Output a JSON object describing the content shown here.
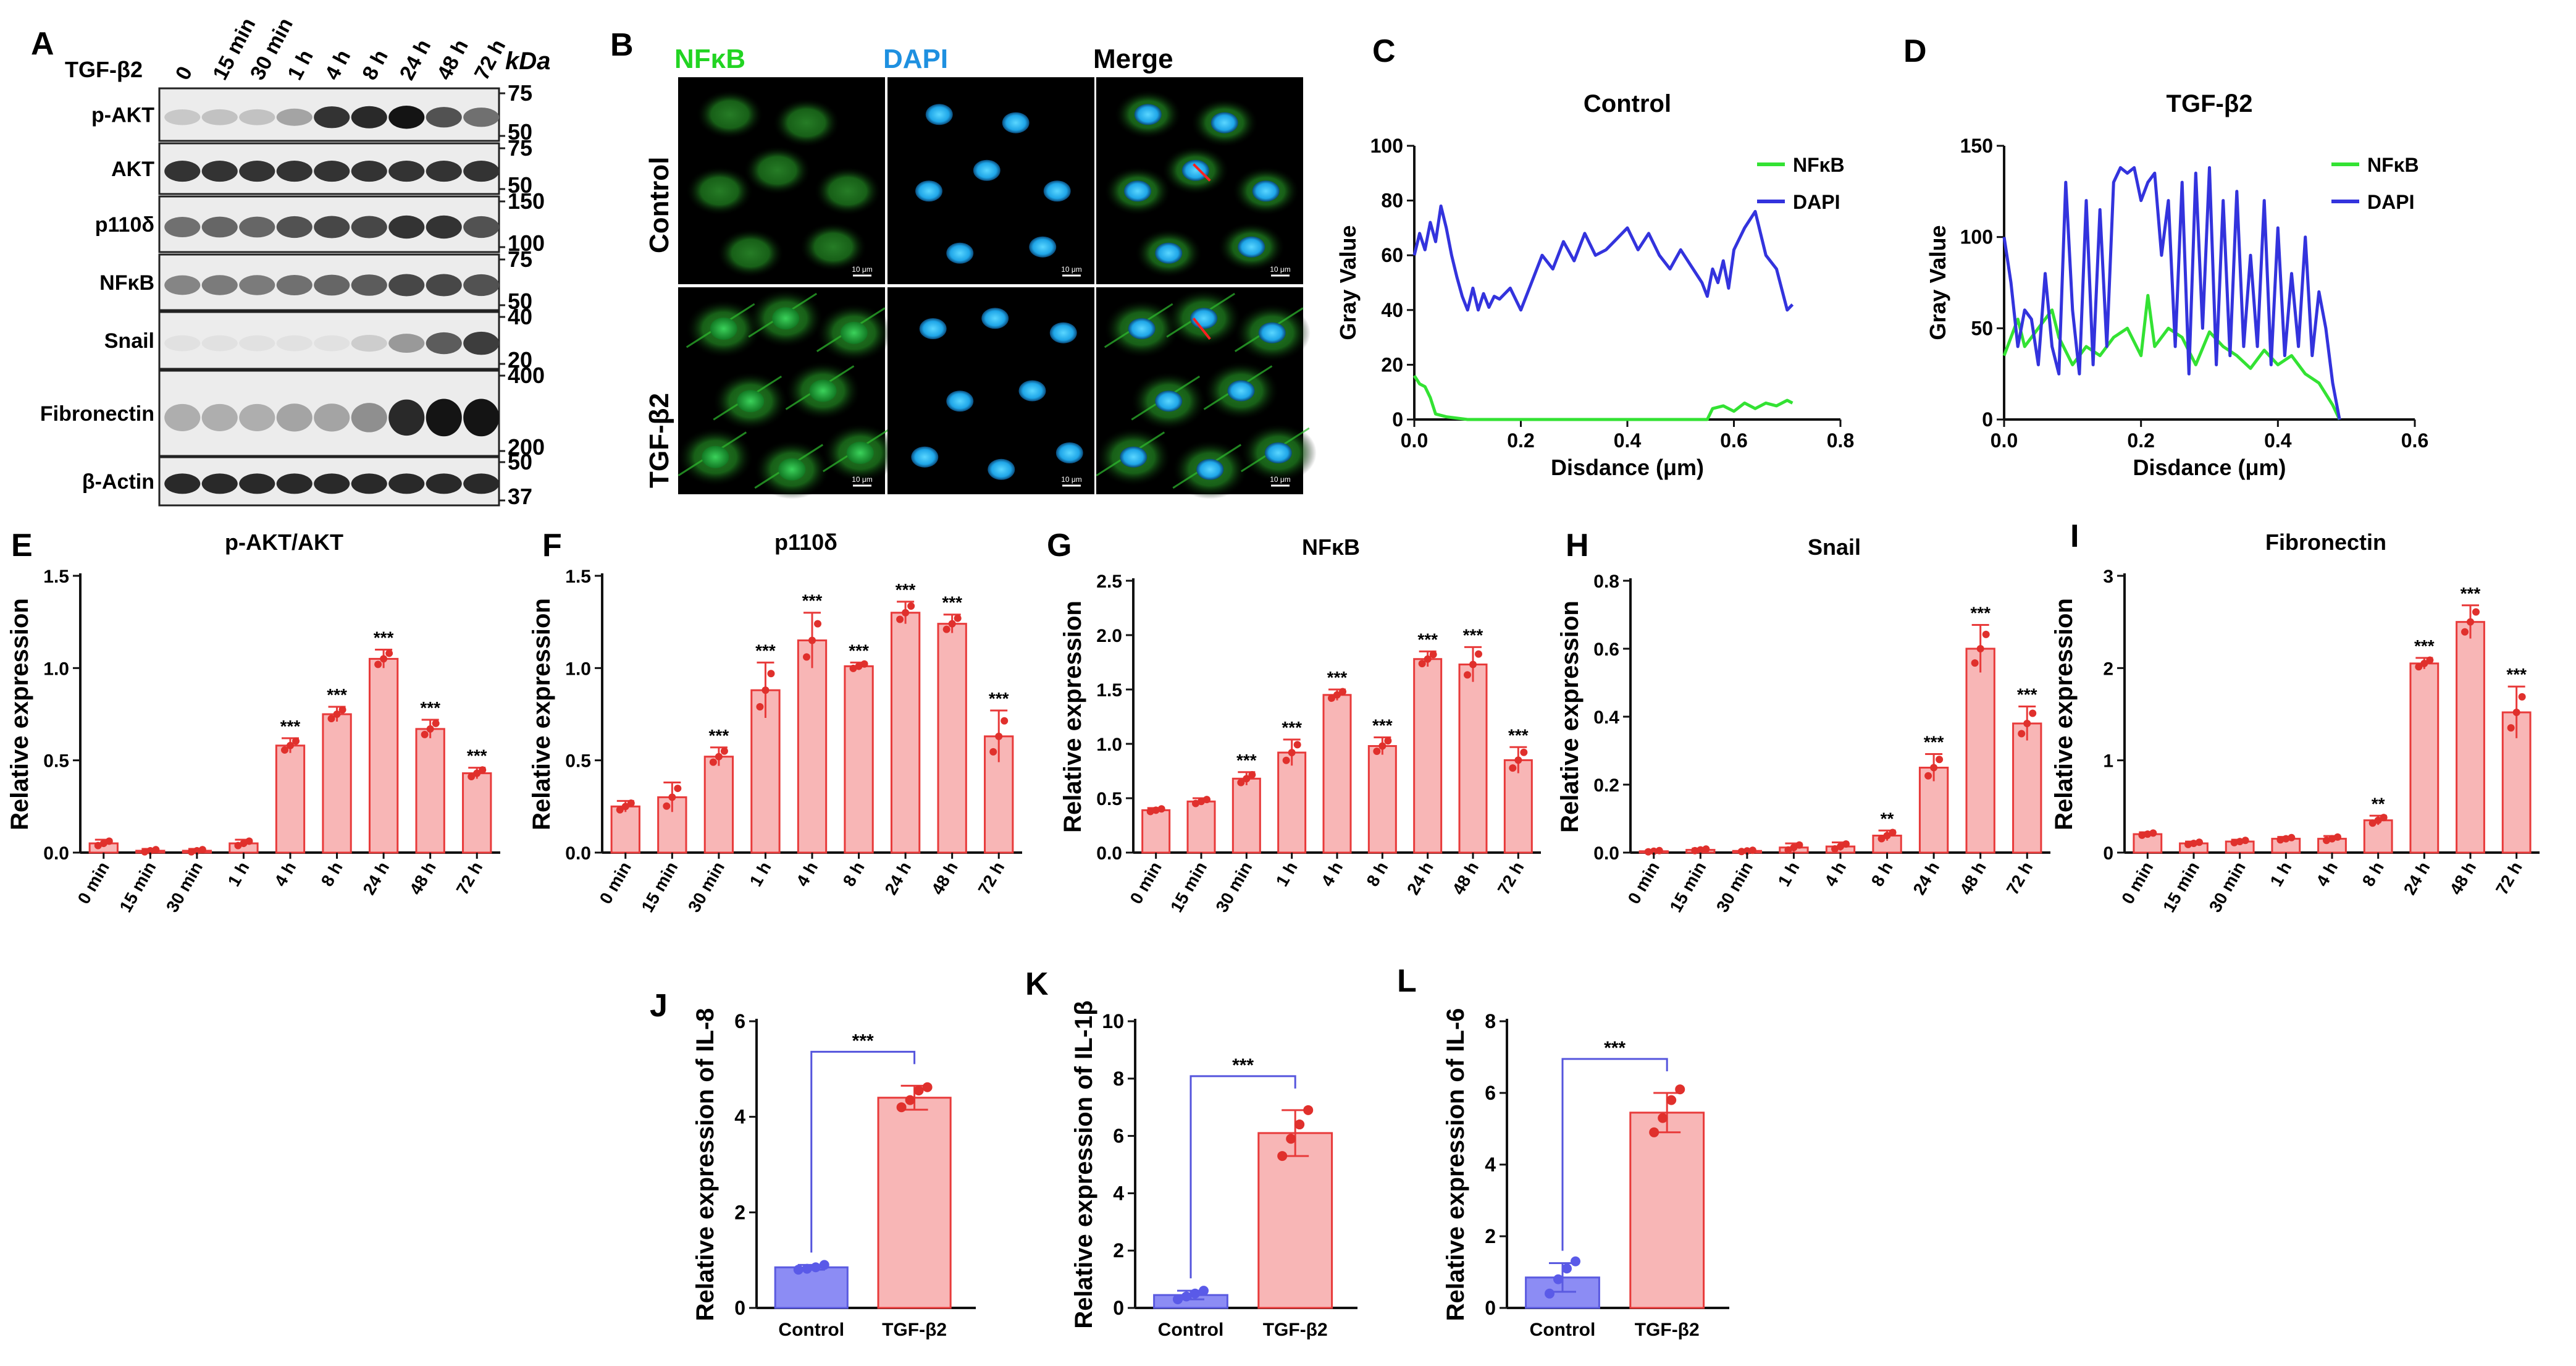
{
  "figure": {
    "panel_letters": [
      "A",
      "B",
      "C",
      "D",
      "E",
      "F",
      "G",
      "H",
      "I",
      "J",
      "K",
      "L"
    ]
  },
  "colors": {
    "bar_red_fill": "#f8b6b6",
    "bar_red_stroke": "#e83a3a",
    "bar_blue_fill": "#8c8cf4",
    "bar_blue_stroke": "#5a5ae0",
    "dot_red": "#e0302c",
    "dot_blue": "#5a5ae8",
    "line_green": "#33e233",
    "line_blue": "#3333dd",
    "nfkb_label": "#22d422",
    "dapi_label": "#1e90e0"
  },
  "western_blot": {
    "treatment_label": "TGF-β2",
    "lanes": [
      "0",
      "15 min",
      "30 min",
      "1 h",
      "4 h",
      "8 h",
      "24 h",
      "48 h",
      "72 h"
    ],
    "kda_header": "kDa",
    "rows": [
      {
        "name": "p-AKT",
        "markers": [
          "75",
          "50"
        ],
        "intensity": [
          0.12,
          0.15,
          0.15,
          0.3,
          0.85,
          0.9,
          1.0,
          0.7,
          0.55
        ]
      },
      {
        "name": "AKT",
        "markers": [
          "75",
          "50"
        ],
        "intensity": [
          0.85,
          0.85,
          0.85,
          0.85,
          0.85,
          0.85,
          0.85,
          0.85,
          0.85
        ]
      },
      {
        "name": "p110δ",
        "markers": [
          "150",
          "100"
        ],
        "intensity": [
          0.55,
          0.6,
          0.6,
          0.7,
          0.75,
          0.75,
          0.85,
          0.85,
          0.7
        ]
      },
      {
        "name": "NFκB",
        "markers": [
          "75",
          "50"
        ],
        "intensity": [
          0.45,
          0.5,
          0.5,
          0.55,
          0.6,
          0.65,
          0.75,
          0.75,
          0.7
        ]
      },
      {
        "name": "Snail",
        "markers": [
          "40",
          "20"
        ],
        "intensity": [
          0.0,
          0.0,
          0.0,
          0.0,
          0.0,
          0.1,
          0.35,
          0.65,
          0.8
        ]
      },
      {
        "name": "Fibronectin",
        "markers": [
          "400",
          "200"
        ],
        "intensity": [
          0.25,
          0.25,
          0.25,
          0.3,
          0.3,
          0.4,
          0.9,
          1.0,
          1.0
        ]
      },
      {
        "name": "β-Actin",
        "markers": [
          "50",
          "37"
        ],
        "intensity": [
          0.9,
          0.9,
          0.9,
          0.9,
          0.9,
          0.9,
          0.9,
          0.9,
          0.9
        ]
      }
    ]
  },
  "microscopy": {
    "columns": [
      "NFκB",
      "DAPI",
      "Merge"
    ],
    "rows": [
      "Control",
      "TGF-β2"
    ],
    "scale_bar": "10 μm"
  },
  "chart_data": [
    {
      "panel": "C",
      "type": "line",
      "title": "Control",
      "xlabel": "Disdance (μm)",
      "ylabel": "Gray Value",
      "xlim": [
        0,
        0.8
      ],
      "ylim": [
        0,
        100
      ],
      "xticks": [
        "0.0",
        "0.2",
        "0.4",
        "0.6",
        "0.8"
      ],
      "yticks": [
        "0",
        "20",
        "40",
        "60",
        "80",
        "100"
      ],
      "series": [
        {
          "name": "NFκB",
          "color": "#33e233",
          "x": [
            0,
            0.01,
            0.02,
            0.03,
            0.04,
            0.06,
            0.1,
            0.2,
            0.3,
            0.4,
            0.5,
            0.55,
            0.56,
            0.58,
            0.6,
            0.62,
            0.64,
            0.66,
            0.68,
            0.7,
            0.71
          ],
          "y": [
            16,
            13,
            12,
            8,
            2,
            1,
            0,
            0,
            0,
            0,
            0,
            0,
            4,
            5,
            3,
            6,
            4,
            6,
            5,
            7,
            6
          ]
        },
        {
          "name": "DAPI",
          "color": "#3333dd",
          "x": [
            0,
            0.01,
            0.02,
            0.03,
            0.04,
            0.05,
            0.06,
            0.07,
            0.08,
            0.09,
            0.1,
            0.11,
            0.12,
            0.13,
            0.14,
            0.15,
            0.16,
            0.18,
            0.2,
            0.22,
            0.24,
            0.26,
            0.28,
            0.3,
            0.32,
            0.34,
            0.36,
            0.38,
            0.4,
            0.42,
            0.44,
            0.46,
            0.48,
            0.5,
            0.52,
            0.54,
            0.55,
            0.56,
            0.57,
            0.58,
            0.59,
            0.6,
            0.62,
            0.64,
            0.66,
            0.68,
            0.7,
            0.71
          ],
          "y": [
            60,
            68,
            62,
            72,
            65,
            78,
            70,
            60,
            52,
            45,
            40,
            48,
            40,
            46,
            41,
            45,
            44,
            48,
            40,
            50,
            60,
            55,
            65,
            58,
            68,
            60,
            62,
            66,
            70,
            62,
            68,
            60,
            55,
            62,
            56,
            50,
            45,
            55,
            50,
            58,
            48,
            62,
            70,
            76,
            60,
            55,
            40,
            42
          ]
        }
      ],
      "legend": [
        "NFκB",
        "DAPI"
      ]
    },
    {
      "panel": "D",
      "type": "line",
      "title": "TGF-β2",
      "xlabel": "Disdance (μm)",
      "ylabel": "Gray Value",
      "xlim": [
        0,
        0.6
      ],
      "ylim": [
        0,
        150
      ],
      "xticks": [
        "0.0",
        "0.2",
        "0.4",
        "0.6"
      ],
      "yticks": [
        "0",
        "50",
        "100",
        "150"
      ],
      "series": [
        {
          "name": "NFκB",
          "color": "#33e233",
          "x": [
            0,
            0.02,
            0.03,
            0.05,
            0.07,
            0.08,
            0.1,
            0.12,
            0.14,
            0.16,
            0.18,
            0.2,
            0.21,
            0.22,
            0.24,
            0.26,
            0.28,
            0.3,
            0.32,
            0.34,
            0.36,
            0.38,
            0.4,
            0.42,
            0.44,
            0.46,
            0.48,
            0.49
          ],
          "y": [
            35,
            55,
            40,
            50,
            60,
            45,
            30,
            40,
            35,
            45,
            50,
            35,
            68,
            40,
            50,
            45,
            30,
            48,
            40,
            35,
            28,
            38,
            30,
            35,
            25,
            20,
            8,
            0
          ]
        },
        {
          "name": "DAPI",
          "color": "#3333dd",
          "x": [
            0,
            0.01,
            0.02,
            0.03,
            0.04,
            0.05,
            0.06,
            0.07,
            0.08,
            0.09,
            0.1,
            0.11,
            0.12,
            0.13,
            0.14,
            0.15,
            0.16,
            0.17,
            0.18,
            0.19,
            0.2,
            0.21,
            0.22,
            0.23,
            0.24,
            0.25,
            0.26,
            0.27,
            0.28,
            0.29,
            0.3,
            0.31,
            0.32,
            0.33,
            0.34,
            0.35,
            0.36,
            0.37,
            0.38,
            0.39,
            0.4,
            0.41,
            0.42,
            0.43,
            0.44,
            0.45,
            0.46,
            0.47,
            0.48,
            0.49
          ],
          "y": [
            100,
            75,
            40,
            60,
            55,
            30,
            80,
            40,
            25,
            130,
            60,
            25,
            120,
            30,
            115,
            40,
            130,
            138,
            135,
            138,
            120,
            130,
            135,
            90,
            120,
            40,
            130,
            25,
            135,
            50,
            138,
            30,
            120,
            35,
            125,
            40,
            90,
            40,
            120,
            30,
            105,
            35,
            80,
            40,
            100,
            35,
            70,
            50,
            20,
            0
          ]
        }
      ],
      "legend": [
        "NFκB",
        "DAPI"
      ]
    },
    {
      "panel": "E",
      "type": "bar",
      "title": "p-AKT/AKT",
      "ylabel": "Relative expression",
      "categories": [
        "0 min",
        "15 min",
        "30 min",
        "1 h",
        "4 h",
        "8 h",
        "24 h",
        "48 h",
        "72 h"
      ],
      "values": [
        0.05,
        0.01,
        0.01,
        0.05,
        0.58,
        0.75,
        1.05,
        0.67,
        0.43
      ],
      "errors": [
        0.02,
        0.01,
        0.01,
        0.02,
        0.04,
        0.04,
        0.05,
        0.05,
        0.03
      ],
      "sig": [
        "",
        "",
        "",
        "",
        "***",
        "***",
        "***",
        "***",
        "***"
      ],
      "ylim": [
        0,
        1.5
      ],
      "yticks": [
        0,
        0.5,
        1.0,
        1.5
      ],
      "ytick_labels": [
        "0.0",
        "0.5",
        "1.0",
        "1.5"
      ]
    },
    {
      "panel": "F",
      "type": "bar",
      "title": "p110δ",
      "ylabel": "Relative expression",
      "categories": [
        "0 min",
        "15 min",
        "30 min",
        "1 h",
        "4 h",
        "8 h",
        "24 h",
        "48 h",
        "72 h"
      ],
      "values": [
        0.25,
        0.3,
        0.52,
        0.88,
        1.15,
        1.01,
        1.3,
        1.24,
        0.63
      ],
      "errors": [
        0.03,
        0.08,
        0.05,
        0.15,
        0.15,
        0.02,
        0.06,
        0.05,
        0.14
      ],
      "sig": [
        "",
        "",
        "***",
        "***",
        "***",
        "***",
        "***",
        "***",
        "***"
      ],
      "ylim": [
        0,
        1.5
      ],
      "yticks": [
        0,
        0.5,
        1.0,
        1.5
      ],
      "ytick_labels": [
        "0.0",
        "0.5",
        "1.0",
        "1.5"
      ]
    },
    {
      "panel": "G",
      "type": "bar",
      "title": "NFκB",
      "ylabel": "Relative expression",
      "categories": [
        "0 min",
        "15 min",
        "30 min",
        "1 h",
        "4 h",
        "8 h",
        "24 h",
        "48 h",
        "72 h"
      ],
      "values": [
        0.39,
        0.47,
        0.68,
        0.92,
        1.45,
        0.98,
        1.78,
        1.73,
        0.85
      ],
      "errors": [
        0.02,
        0.03,
        0.06,
        0.12,
        0.05,
        0.08,
        0.07,
        0.16,
        0.12
      ],
      "sig": [
        "",
        "",
        "***",
        "***",
        "***",
        "***",
        "***",
        "***",
        "***"
      ],
      "ylim": [
        0,
        2.5
      ],
      "yticks": [
        0,
        0.5,
        1.0,
        1.5,
        2.0,
        2.5
      ],
      "ytick_labels": [
        "0.0",
        "0.5",
        "1.0",
        "1.5",
        "2.0",
        "2.5"
      ]
    },
    {
      "panel": "H",
      "type": "bar",
      "title": "Snail",
      "ylabel": "Relative expression",
      "categories": [
        "0 min",
        "15 min",
        "30 min",
        "1 h",
        "4 h",
        "8 h",
        "24 h",
        "48 h",
        "72 h"
      ],
      "values": [
        0.004,
        0.008,
        0.005,
        0.015,
        0.018,
        0.05,
        0.25,
        0.6,
        0.38
      ],
      "errors": [
        0.003,
        0.004,
        0.003,
        0.012,
        0.012,
        0.015,
        0.04,
        0.07,
        0.05
      ],
      "sig": [
        "",
        "",
        "",
        "",
        "",
        "**",
        "***",
        "***",
        "***"
      ],
      "ylim": [
        0,
        0.8
      ],
      "yticks": [
        0,
        0.2,
        0.4,
        0.6,
        0.8
      ],
      "ytick_labels": [
        "0.0",
        "0.2",
        "0.4",
        "0.6",
        "0.8"
      ]
    },
    {
      "panel": "I",
      "type": "bar",
      "title": "Fibronectin",
      "ylabel": "Relative expression",
      "categories": [
        "0 min",
        "15 min",
        "30 min",
        "1 h",
        "4 h",
        "8 h",
        "24 h",
        "48 h",
        "72 h"
      ],
      "values": [
        0.2,
        0.1,
        0.12,
        0.15,
        0.15,
        0.35,
        2.05,
        2.5,
        1.52
      ],
      "errors": [
        0.02,
        0.02,
        0.02,
        0.02,
        0.03,
        0.05,
        0.06,
        0.18,
        0.28
      ],
      "sig": [
        "",
        "",
        "",
        "",
        "",
        "**",
        "***",
        "***",
        "***"
      ],
      "ylim": [
        0,
        3
      ],
      "yticks": [
        0,
        1,
        2,
        3
      ],
      "ytick_labels": [
        "0",
        "1",
        "2",
        "3"
      ]
    },
    {
      "panel": "J",
      "type": "bar",
      "ylabel": "Relative expression of IL-8",
      "categories": [
        "Control",
        "TGF-β2"
      ],
      "values": [
        0.85,
        4.4
      ],
      "errors": [
        0.05,
        0.25
      ],
      "points": [
        [
          0.8,
          0.82,
          0.85,
          0.9
        ],
        [
          4.2,
          4.35,
          4.55,
          4.62
        ]
      ],
      "comparison": "***",
      "ylim": [
        0,
        6
      ],
      "yticks": [
        0,
        2,
        4,
        6
      ],
      "ytick_labels": [
        "0",
        "2",
        "4",
        "6"
      ]
    },
    {
      "panel": "K",
      "type": "bar",
      "ylabel": "Relative expression of IL-1β",
      "categories": [
        "Control",
        "TGF-β2"
      ],
      "values": [
        0.45,
        6.1
      ],
      "errors": [
        0.15,
        0.8
      ],
      "points": [
        [
          0.3,
          0.4,
          0.5,
          0.6
        ],
        [
          5.3,
          5.9,
          6.4,
          6.9
        ]
      ],
      "comparison": "***",
      "ylim": [
        0,
        10
      ],
      "yticks": [
        0,
        2,
        4,
        6,
        8,
        10
      ],
      "ytick_labels": [
        "0",
        "2",
        "4",
        "6",
        "8",
        "10"
      ]
    },
    {
      "panel": "L",
      "type": "bar",
      "ylabel": "Relative expression of IL-6",
      "categories": [
        "Control",
        "TGF-β2"
      ],
      "values": [
        0.85,
        5.45
      ],
      "errors": [
        0.4,
        0.55
      ],
      "points": [
        [
          0.4,
          0.8,
          1.1,
          1.3
        ],
        [
          4.9,
          5.3,
          5.8,
          6.1
        ]
      ],
      "comparison": "***",
      "ylim": [
        0,
        8
      ],
      "yticks": [
        0,
        2,
        4,
        6,
        8
      ],
      "ytick_labels": [
        "0",
        "2",
        "4",
        "6",
        "8"
      ]
    }
  ]
}
